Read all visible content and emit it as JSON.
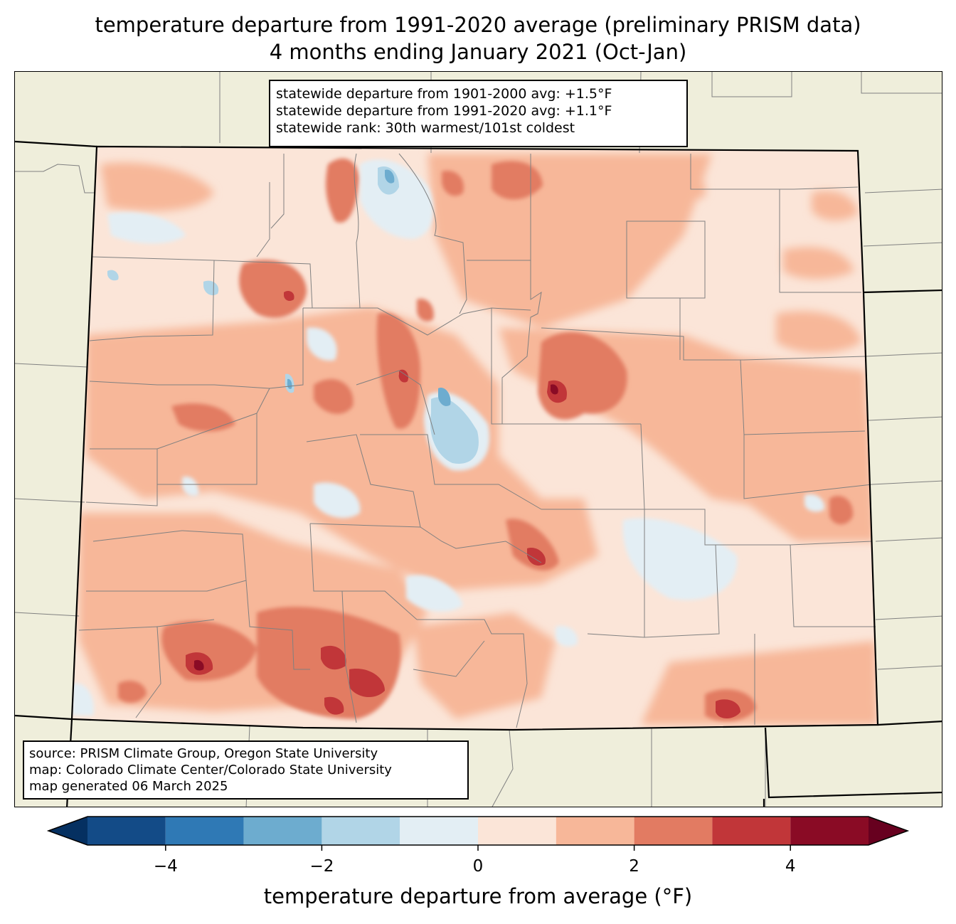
{
  "title": {
    "line1": "temperature departure from 1991-2020 average (preliminary PRISM data)",
    "line2": "4 months ending January 2021 (Oct-Jan)"
  },
  "stats": {
    "line1": "statewide departure from 1901-2000 avg: +1.5°F",
    "line2": "statewide departure from 1991-2020 avg: +1.1°F",
    "line3": "statewide rank: 30th warmest/101st coldest"
  },
  "source": {
    "line1": "source: PRISM Climate Group, Oregon State University",
    "line2": "map: Colorado Climate Center/Colorado State University",
    "line3": "map generated 06 March 2025"
  },
  "colorbar": {
    "label": "temperature departure from average (°F)",
    "ticks": [
      {
        "value": -4,
        "label": "−4"
      },
      {
        "value": -2,
        "label": "−2"
      },
      {
        "value": 0,
        "label": "0"
      },
      {
        "value": 2,
        "label": "2"
      },
      {
        "value": 4,
        "label": "4"
      }
    ],
    "range": [
      -5,
      5
    ],
    "step": 1,
    "under_color": "#053061",
    "over_color": "#67001f",
    "colors": [
      "#134b87",
      "#2f79b5",
      "#6daccf",
      "#b1d5e7",
      "#e3eef4",
      "#fbe5d8",
      "#f7b799",
      "#e27b62",
      "#c13639",
      "#8a0b25"
    ]
  },
  "map_colors": {
    "background": "#efeedb",
    "county_lines": "#808080",
    "state_lines": "#000000"
  }
}
